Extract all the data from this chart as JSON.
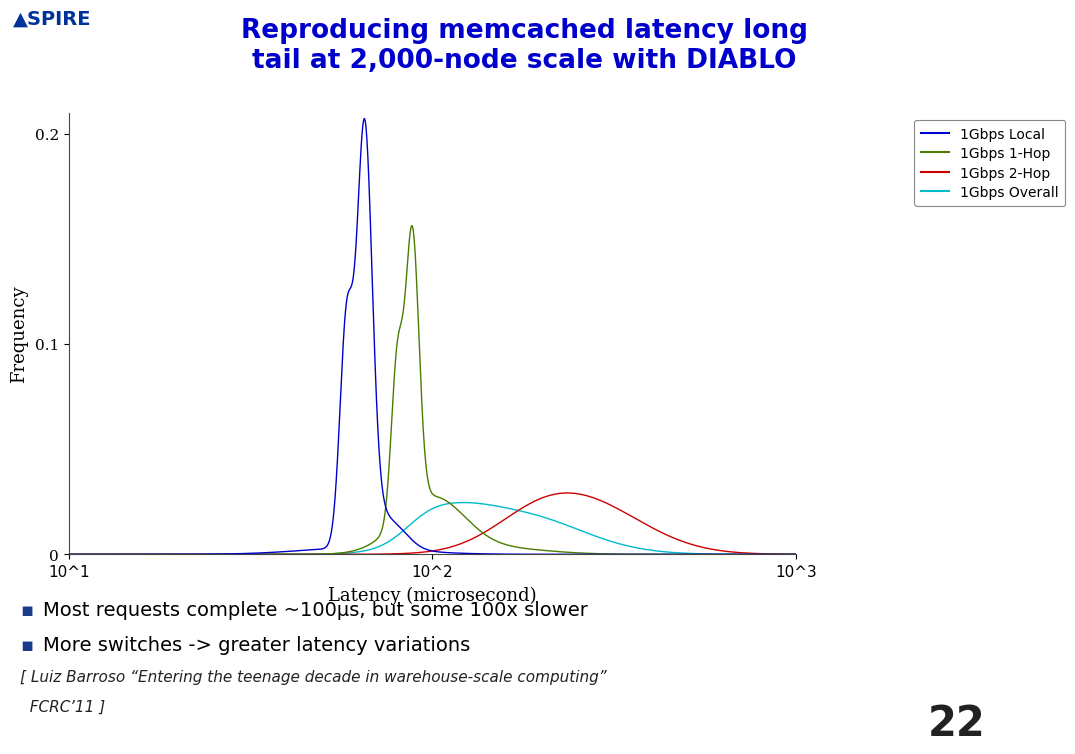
{
  "title_line1": "Reproducing memcached latency long",
  "title_line2": "tail at 2,000-node scale with DIABLO",
  "xlabel": "Latency (microsecond)",
  "ylabel": "Frequency",
  "ylim": [
    0,
    0.21
  ],
  "yticks": [
    0,
    0.1,
    0.2
  ],
  "legend_labels": [
    "1Gbps Local",
    "1Gbps 1-Hop",
    "1Gbps 2-Hop",
    "1Gbps Overall"
  ],
  "line_colors": [
    "#0000cc",
    "#4a7c00",
    "#cc0000",
    "#00bbcc"
  ],
  "bullet_text1": "Most requests complete ~100μs, but some 100x slower",
  "bullet_text2": "More switches -> greater latency variations",
  "footnote_line1": "[ Luiz Barroso “Entering the teenage decade in warehouse-scale computing”",
  "footnote_line2": "  FCRC’11 ]",
  "slide_number": "22",
  "background_color": "#ffffff",
  "title_color": "#0000cc",
  "bullet_color": "#000000",
  "bullet_square_color": "#1a3a8a",
  "footnote_color": "#222222"
}
